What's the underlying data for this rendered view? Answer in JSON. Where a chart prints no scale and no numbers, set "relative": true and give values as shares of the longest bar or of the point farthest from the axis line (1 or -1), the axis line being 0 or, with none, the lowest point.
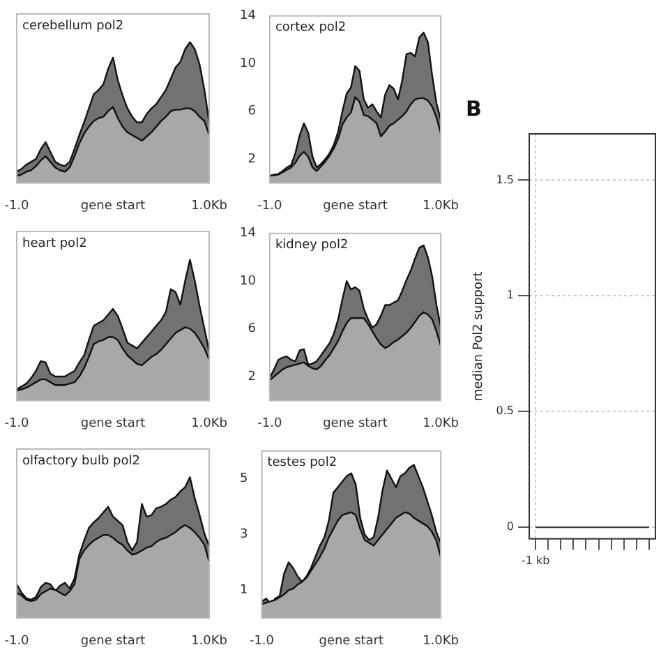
{
  "chart_data": [
    {
      "type": "area",
      "title": "cerebellum pol2",
      "relative": true,
      "xlim": [
        -1,
        1
      ],
      "xticks": [
        {
          "value": -1,
          "label": "-1.0"
        },
        {
          "value": 0,
          "label": "gene start"
        },
        {
          "value": 1,
          "label": "1.0Kb"
        }
      ],
      "x": [
        -1,
        -0.95,
        -0.9,
        -0.85,
        -0.8,
        -0.75,
        -0.7,
        -0.65,
        -0.6,
        -0.55,
        -0.5,
        -0.45,
        -0.4,
        -0.35,
        -0.3,
        -0.25,
        -0.2,
        -0.15,
        -0.1,
        -0.05,
        0,
        0.05,
        0.1,
        0.15,
        0.2,
        0.25,
        0.3,
        0.35,
        0.4,
        0.45,
        0.5,
        0.55,
        0.6,
        0.65,
        0.7,
        0.75,
        0.8,
        0.85,
        0.9,
        0.95,
        1
      ],
      "series": [
        {
          "color": "#727272",
          "values": [
            0.08,
            0.1,
            0.13,
            0.15,
            0.17,
            0.24,
            0.29,
            0.22,
            0.15,
            0.13,
            0.12,
            0.15,
            0.24,
            0.34,
            0.43,
            0.53,
            0.63,
            0.66,
            0.7,
            0.81,
            0.89,
            0.73,
            0.62,
            0.53,
            0.47,
            0.43,
            0.43,
            0.49,
            0.53,
            0.56,
            0.61,
            0.66,
            0.74,
            0.82,
            0.86,
            0.95,
            1,
            0.95,
            0.84,
            0.66,
            0.43
          ]
        },
        {
          "color": "#a8a8a8",
          "values": [
            0.05,
            0.06,
            0.08,
            0.09,
            0.12,
            0.16,
            0.19,
            0.15,
            0.11,
            0.09,
            0.08,
            0.11,
            0.19,
            0.28,
            0.35,
            0.4,
            0.44,
            0.46,
            0.47,
            0.51,
            0.54,
            0.46,
            0.4,
            0.36,
            0.34,
            0.32,
            0.3,
            0.33,
            0.36,
            0.4,
            0.44,
            0.47,
            0.51,
            0.52,
            0.52,
            0.53,
            0.53,
            0.51,
            0.47,
            0.44,
            0.34
          ]
        }
      ]
    },
    {
      "type": "area",
      "title": "cortex pol2",
      "xlim": [
        -1,
        1
      ],
      "xticks": [
        {
          "value": -1,
          "label": "-1.0"
        },
        {
          "value": 0,
          "label": "gene start"
        },
        {
          "value": 1,
          "label": "1.0Kb"
        }
      ],
      "ylim": [
        0,
        14
      ],
      "yticks": [
        2,
        6,
        10,
        14
      ],
      "x": [
        -1,
        -0.95,
        -0.9,
        -0.85,
        -0.8,
        -0.75,
        -0.7,
        -0.65,
        -0.6,
        -0.55,
        -0.5,
        -0.45,
        -0.4,
        -0.35,
        -0.3,
        -0.25,
        -0.2,
        -0.15,
        -0.1,
        -0.05,
        0,
        0.05,
        0.1,
        0.15,
        0.2,
        0.25,
        0.3,
        0.35,
        0.4,
        0.45,
        0.5,
        0.55,
        0.6,
        0.65,
        0.7,
        0.75,
        0.8,
        0.85,
        0.9,
        0.95,
        1
      ],
      "series": [
        {
          "color": "#727272",
          "values": [
            0.6,
            0.7,
            0.75,
            1.0,
            1.3,
            1.5,
            2.5,
            4.0,
            5.0,
            4.2,
            2.2,
            1.3,
            1.6,
            2.0,
            2.5,
            3.2,
            4.3,
            6.0,
            7.5,
            8.0,
            9.8,
            9.4,
            7.0,
            6.3,
            6.6,
            6.0,
            5.5,
            7.4,
            8.2,
            7.9,
            7.0,
            8.6,
            10.8,
            10.9,
            10.6,
            12.2,
            12.6,
            11.8,
            9.0,
            6.7,
            5.3
          ]
        },
        {
          "color": "#a8a8a8",
          "values": [
            0.6,
            0.65,
            0.7,
            0.9,
            1.1,
            1.3,
            1.7,
            2.3,
            2.6,
            2.2,
            1.3,
            1.0,
            1.4,
            1.8,
            2.3,
            2.9,
            3.7,
            4.9,
            5.5,
            5.9,
            7.2,
            6.8,
            5.7,
            5.6,
            5.3,
            5.0,
            3.9,
            4.3,
            4.8,
            5.0,
            5.3,
            5.6,
            6.0,
            6.6,
            7.0,
            7.1,
            7.1,
            6.9,
            6.4,
            5.5,
            4.2
          ]
        }
      ]
    },
    {
      "type": "area",
      "title": "heart pol2",
      "relative": true,
      "xlim": [
        -1,
        1
      ],
      "xticks": [
        {
          "value": -1,
          "label": "-1.0"
        },
        {
          "value": 0,
          "label": "gene start"
        },
        {
          "value": 1,
          "label": "1.0Kb"
        }
      ],
      "x": [
        -1,
        -0.95,
        -0.9,
        -0.85,
        -0.8,
        -0.75,
        -0.7,
        -0.65,
        -0.6,
        -0.55,
        -0.5,
        -0.45,
        -0.4,
        -0.35,
        -0.3,
        -0.25,
        -0.2,
        -0.15,
        -0.1,
        -0.05,
        0,
        0.05,
        0.1,
        0.15,
        0.2,
        0.25,
        0.3,
        0.35,
        0.4,
        0.45,
        0.5,
        0.55,
        0.6,
        0.65,
        0.7,
        0.75,
        0.8,
        0.85,
        0.9,
        0.95,
        1
      ],
      "series": [
        {
          "color": "#727272",
          "values": [
            0.08,
            0.1,
            0.12,
            0.16,
            0.21,
            0.28,
            0.27,
            0.19,
            0.17,
            0.17,
            0.17,
            0.19,
            0.21,
            0.27,
            0.32,
            0.43,
            0.53,
            0.55,
            0.57,
            0.61,
            0.65,
            0.6,
            0.51,
            0.41,
            0.39,
            0.37,
            0.41,
            0.45,
            0.49,
            0.53,
            0.57,
            0.63,
            0.79,
            0.77,
            0.68,
            0.85,
            1,
            0.85,
            0.67,
            0.51,
            0.35
          ]
        },
        {
          "color": "#a8a8a8",
          "values": [
            0.07,
            0.08,
            0.09,
            0.11,
            0.13,
            0.15,
            0.15,
            0.13,
            0.11,
            0.11,
            0.11,
            0.12,
            0.13,
            0.17,
            0.23,
            0.31,
            0.4,
            0.42,
            0.43,
            0.45,
            0.45,
            0.43,
            0.37,
            0.32,
            0.29,
            0.26,
            0.25,
            0.28,
            0.31,
            0.33,
            0.36,
            0.4,
            0.44,
            0.48,
            0.5,
            0.52,
            0.51,
            0.48,
            0.43,
            0.37,
            0.29
          ]
        }
      ]
    },
    {
      "type": "area",
      "title": "kidney pol2",
      "xlim": [
        -1,
        1
      ],
      "xticks": [
        {
          "value": -1,
          "label": "-1.0"
        },
        {
          "value": 0,
          "label": "gene start"
        },
        {
          "value": 1,
          "label": "1.0Kb"
        }
      ],
      "ylim": [
        0,
        14
      ],
      "yticks": [
        2,
        6,
        10,
        14
      ],
      "x": [
        -1,
        -0.95,
        -0.9,
        -0.85,
        -0.8,
        -0.75,
        -0.7,
        -0.65,
        -0.6,
        -0.55,
        -0.5,
        -0.45,
        -0.4,
        -0.35,
        -0.3,
        -0.25,
        -0.2,
        -0.15,
        -0.1,
        -0.05,
        0,
        0.05,
        0.1,
        0.15,
        0.2,
        0.25,
        0.3,
        0.35,
        0.4,
        0.45,
        0.5,
        0.55,
        0.6,
        0.65,
        0.7,
        0.75,
        0.8,
        0.85,
        0.9,
        0.95,
        1
      ],
      "series": [
        {
          "color": "#727272",
          "values": [
            1.9,
            2.6,
            3.4,
            3.6,
            3.7,
            3.4,
            3.3,
            4.2,
            4.3,
            3.0,
            3.1,
            3.3,
            3.8,
            4.3,
            4.8,
            5.6,
            6.8,
            8.5,
            10.0,
            9.3,
            9.5,
            9.2,
            7.7,
            6.8,
            6.1,
            6.4,
            7.1,
            8.0,
            8.0,
            8.2,
            8.4,
            9.2,
            10.1,
            10.9,
            11.9,
            12.8,
            13.0,
            12.0,
            10.4,
            8.0,
            6.2
          ]
        },
        {
          "color": "#a8a8a8",
          "values": [
            1.7,
            2.0,
            2.3,
            2.6,
            2.8,
            2.9,
            3.0,
            3.1,
            3.2,
            2.9,
            2.7,
            2.6,
            2.9,
            3.4,
            3.8,
            4.4,
            5.0,
            5.8,
            6.5,
            6.9,
            6.9,
            6.9,
            6.9,
            6.4,
            5.8,
            5.2,
            4.7,
            4.4,
            4.6,
            4.9,
            5.1,
            5.4,
            5.7,
            6.1,
            6.6,
            7.1,
            7.4,
            7.2,
            6.8,
            5.8,
            4.6
          ]
        }
      ]
    },
    {
      "type": "area",
      "title": "olfactory bulb pol2",
      "relative": true,
      "xlim": [
        -1,
        1
      ],
      "xticks": [
        {
          "value": -1,
          "label": "-1.0"
        },
        {
          "value": 0,
          "label": "gene start"
        },
        {
          "value": 1,
          "label": "1.0Kb"
        }
      ],
      "x": [
        -1,
        -0.95,
        -0.9,
        -0.85,
        -0.8,
        -0.75,
        -0.7,
        -0.65,
        -0.6,
        -0.55,
        -0.5,
        -0.45,
        -0.4,
        -0.35,
        -0.3,
        -0.25,
        -0.2,
        -0.15,
        -0.1,
        -0.05,
        0,
        0.05,
        0.1,
        0.15,
        0.2,
        0.25,
        0.3,
        0.35,
        0.4,
        0.45,
        0.5,
        0.55,
        0.6,
        0.65,
        0.7,
        0.75,
        0.8,
        0.85,
        0.9,
        0.95,
        1
      ],
      "series": [
        {
          "color": "#727272",
          "values": [
            0.24,
            0.18,
            0.14,
            0.13,
            0.15,
            0.22,
            0.25,
            0.24,
            0.19,
            0.23,
            0.25,
            0.21,
            0.28,
            0.45,
            0.55,
            0.64,
            0.68,
            0.71,
            0.75,
            0.79,
            0.72,
            0.69,
            0.66,
            0.54,
            0.48,
            0.54,
            0.81,
            0.72,
            0.73,
            0.78,
            0.79,
            0.81,
            0.84,
            0.86,
            0.9,
            0.93,
            1,
            0.85,
            0.73,
            0.6,
            0.51
          ]
        },
        {
          "color": "#a8a8a8",
          "values": [
            0.18,
            0.16,
            0.13,
            0.12,
            0.13,
            0.17,
            0.19,
            0.21,
            0.2,
            0.18,
            0.16,
            0.19,
            0.24,
            0.42,
            0.48,
            0.52,
            0.55,
            0.57,
            0.59,
            0.59,
            0.57,
            0.54,
            0.52,
            0.48,
            0.45,
            0.46,
            0.48,
            0.5,
            0.51,
            0.54,
            0.56,
            0.57,
            0.59,
            0.61,
            0.64,
            0.66,
            0.64,
            0.61,
            0.57,
            0.52,
            0.4
          ]
        }
      ]
    },
    {
      "type": "area",
      "title": "testes pol2",
      "xlim": [
        -1,
        1
      ],
      "xticks": [
        {
          "value": -1,
          "label": "-1.0"
        },
        {
          "value": 0,
          "label": "gene start"
        },
        {
          "value": 1,
          "label": "1.0Kb"
        }
      ],
      "ylim": [
        0,
        6
      ],
      "yticks": [
        1,
        3,
        5
      ],
      "x": [
        -1,
        -0.95,
        -0.9,
        -0.85,
        -0.8,
        -0.75,
        -0.7,
        -0.65,
        -0.6,
        -0.55,
        -0.5,
        -0.45,
        -0.4,
        -0.35,
        -0.3,
        -0.25,
        -0.2,
        -0.15,
        -0.1,
        -0.05,
        0,
        0.05,
        0.1,
        0.15,
        0.2,
        0.25,
        0.3,
        0.35,
        0.4,
        0.45,
        0.5,
        0.55,
        0.6,
        0.65,
        0.7,
        0.75,
        0.8,
        0.85,
        0.9,
        0.95,
        1
      ],
      "series": [
        {
          "color": "#727272",
          "values": [
            0.6,
            0.7,
            0.5,
            0.7,
            0.8,
            1.6,
            2.0,
            1.8,
            1.5,
            1.3,
            1.5,
            1.8,
            2.2,
            2.6,
            2.9,
            3.5,
            4.5,
            4.7,
            4.9,
            5.1,
            5.2,
            4.8,
            3.6,
            3.0,
            2.8,
            2.9,
            3.6,
            4.6,
            5.3,
            5.0,
            4.7,
            5.1,
            5.2,
            5.4,
            5.5,
            5.1,
            4.7,
            4.2,
            3.7,
            3.1,
            2.7
          ]
        },
        {
          "color": "#a8a8a8",
          "values": [
            0.5,
            0.55,
            0.6,
            0.65,
            0.75,
            0.85,
            1.0,
            1.05,
            1.2,
            1.3,
            1.45,
            1.7,
            1.95,
            2.2,
            2.5,
            2.9,
            3.2,
            3.5,
            3.7,
            3.75,
            3.8,
            3.7,
            3.2,
            2.8,
            2.7,
            2.6,
            2.8,
            3.0,
            3.2,
            3.4,
            3.6,
            3.7,
            3.8,
            3.75,
            3.6,
            3.5,
            3.4,
            3.3,
            3.1,
            2.8,
            2.2
          ]
        }
      ]
    },
    {
      "type": "line",
      "title": "B",
      "ylabel": "median Pol2 support",
      "categories": [
        "-1 kb",
        null,
        null,
        null,
        null,
        null,
        null,
        null,
        null,
        null
      ],
      "values": [
        0,
        0,
        0,
        0,
        0,
        0,
        0,
        0,
        0,
        0
      ],
      "color": "#333333",
      "ylim": [
        -0.05,
        1.7
      ],
      "yticks": [
        0,
        0.5,
        1,
        1.5
      ],
      "grid": true
    }
  ]
}
